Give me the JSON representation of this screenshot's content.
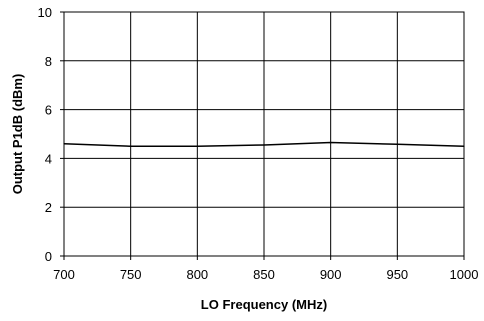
{
  "chart_data": {
    "type": "line",
    "title": "",
    "xlabel": "LO Frequency (MHz)",
    "ylabel": "Output P1dB (dBm)",
    "xlim": [
      700,
      1000
    ],
    "ylim": [
      0,
      10
    ],
    "x_ticks": [
      700,
      750,
      800,
      850,
      900,
      950,
      1000
    ],
    "y_ticks": [
      0,
      2,
      4,
      6,
      8,
      10
    ],
    "grid": true,
    "legend": "none",
    "series": [
      {
        "x": [
          700,
          750,
          800,
          850,
          900,
          950,
          1000
        ],
        "y": [
          4.6,
          4.5,
          4.5,
          4.55,
          4.65,
          4.58,
          4.5
        ],
        "color": "#000000"
      }
    ]
  }
}
